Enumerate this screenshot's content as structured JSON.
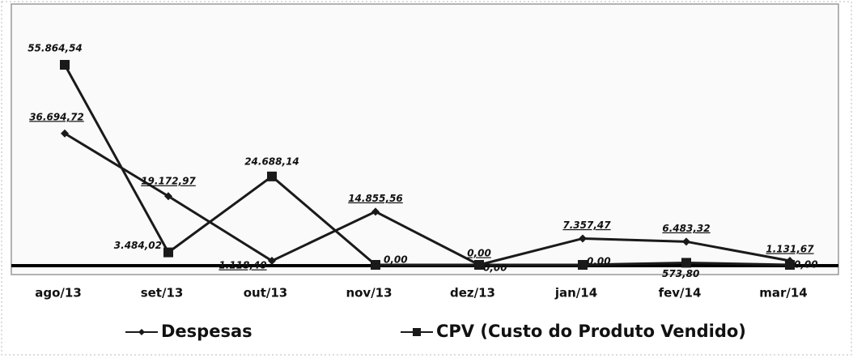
{
  "chart_data": {
    "type": "line",
    "categories": [
      "ago/13",
      "set/13",
      "out/13",
      "nov/13",
      "dez/13",
      "jan/14",
      "fev/14",
      "mar/14"
    ],
    "series": [
      {
        "name": "Despesas",
        "color": "#1a1a1a",
        "marker": "diamond",
        "values": [
          36694.72,
          19172.97,
          1118.4,
          14855.56,
          0,
          7357.47,
          6483.32,
          1131.67
        ],
        "value_labels": [
          "36.694,72",
          "19.172,97",
          "1.118,40",
          "14.855,56",
          "0,00",
          "7.357,47",
          "6.483,32",
          "1.131,67"
        ]
      },
      {
        "name": "CPV (Custo do Produto Vendido)",
        "color": "#1a1a1a",
        "marker": "square",
        "values": [
          55864.54,
          3484.02,
          24688.14,
          0,
          0,
          0,
          573.8,
          0
        ],
        "value_labels": [
          "55.864,54",
          "3.484,02",
          "24.688,14",
          "0,00",
          "0,00",
          "0,00",
          "573,80",
          "0,00"
        ]
      }
    ]
  }
}
